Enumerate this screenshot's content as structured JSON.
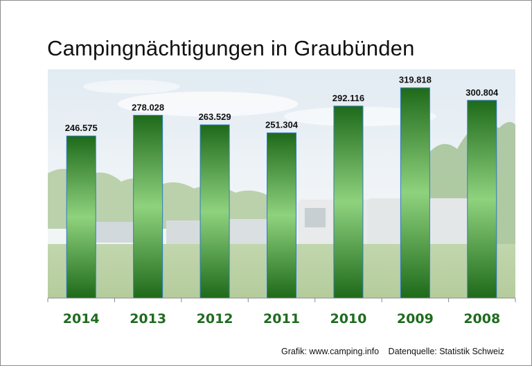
{
  "title": "Campingnächtigungen in Graubünden",
  "source": {
    "credit": "Grafik: www.camping.info",
    "data_source": "Datenquelle: Statistik Schweiz"
  },
  "colors": {
    "bar_dark": "#1e6a1a",
    "bar_light": "#8fd27e",
    "category_label": "#1f6b1f"
  },
  "chart_data": {
    "type": "bar",
    "title": "Campingnächtigungen in Graubünden",
    "categories": [
      "2014",
      "2013",
      "2012",
      "2011",
      "2010",
      "2009",
      "2008"
    ],
    "values": [
      246575,
      278028,
      263529,
      251304,
      292116,
      319818,
      300804
    ],
    "value_labels": [
      "246.575",
      "278.028",
      "263.529",
      "251.304",
      "292.116",
      "319.818",
      "300.804"
    ],
    "xlabel": "",
    "ylabel": "",
    "ylim": [
      0,
      348000
    ],
    "grid": false,
    "legend": "none"
  }
}
